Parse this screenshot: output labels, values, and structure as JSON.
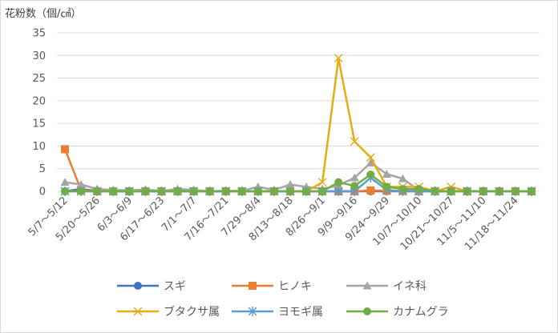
{
  "chart_data": {
    "type": "line",
    "title": "",
    "ylabel": "花粉数（個/㎠）",
    "xlabel": "",
    "ylim": [
      0,
      35
    ],
    "yticks": [
      0,
      5,
      10,
      15,
      20,
      25,
      30,
      35
    ],
    "grid": true,
    "legend_position": "bottom",
    "categories": [
      "5/7～5/12",
      "",
      "5/20～5/26",
      "",
      "6/3～6/9",
      "",
      "6/17～6/23",
      "",
      "7/1～7/7",
      "",
      "7/16～7/21",
      "",
      "7/29～8/4",
      "",
      "8/13～8/18",
      "",
      "8/26～9/1",
      "",
      "9/9～9/16",
      "",
      "9/24～9/29",
      "",
      "10/7～10/10",
      "",
      "10/21～10/27",
      "",
      "11/5～11/10",
      "",
      "11/18～11/24",
      ""
    ],
    "series": [
      {
        "name": "スギ",
        "color": "#4472c4",
        "marker": "circle",
        "values": [
          0,
          0.5,
          0.1,
          0,
          0,
          0,
          0,
          0,
          0,
          0,
          0,
          0,
          0,
          0,
          0,
          0,
          0,
          0,
          0,
          0,
          0,
          0,
          0,
          0,
          0,
          0,
          0,
          0,
          0,
          0
        ]
      },
      {
        "name": "ヒノキ",
        "color": "#ed7d31",
        "marker": "square",
        "values": [
          9.3,
          0.3,
          0,
          0,
          0,
          0,
          0,
          0,
          0,
          0,
          0,
          0,
          0,
          0,
          0,
          0,
          0,
          0,
          0,
          0.2,
          0.1,
          0.1,
          0,
          0,
          0,
          0,
          0,
          0,
          0,
          0
        ]
      },
      {
        "name": "イネ科",
        "color": "#a5a5a5",
        "marker": "triangle",
        "values": [
          2,
          1.5,
          0.5,
          0.3,
          0.2,
          0.4,
          0.1,
          0.5,
          0.3,
          0,
          0.1,
          0.1,
          1,
          0.3,
          1.5,
          1,
          0.5,
          1.3,
          3,
          6.3,
          3.8,
          2.8,
          0.2,
          0,
          0,
          0,
          0,
          0,
          0,
          0
        ]
      },
      {
        "name": "ブタクサ属",
        "color": "#e6ac14",
        "marker": "x",
        "values": [
          0,
          0,
          0,
          0,
          0,
          0,
          0,
          0,
          0,
          0,
          0,
          0,
          0,
          0,
          0,
          0,
          2,
          29.4,
          11,
          7.5,
          1,
          1,
          1,
          0,
          1,
          0,
          0,
          0,
          0,
          0
        ]
      },
      {
        "name": "ヨモギ属",
        "color": "#5b9bd5",
        "marker": "star",
        "values": [
          0,
          0,
          0,
          0,
          0,
          0,
          0,
          0,
          0,
          0,
          0,
          0,
          0,
          0,
          0,
          0,
          0,
          0,
          0,
          3,
          0.3,
          0,
          0,
          0,
          0,
          0,
          0,
          0,
          0,
          0
        ]
      },
      {
        "name": "カナムグラ",
        "color": "#70ad47",
        "marker": "circle",
        "values": [
          0,
          0,
          0,
          0,
          0,
          0,
          0,
          0,
          0,
          0,
          0,
          0,
          0,
          0,
          0,
          0,
          0,
          2,
          1.2,
          3.7,
          1,
          0.5,
          0.5,
          0.1,
          0,
          0,
          0,
          0,
          0,
          0
        ]
      }
    ]
  }
}
